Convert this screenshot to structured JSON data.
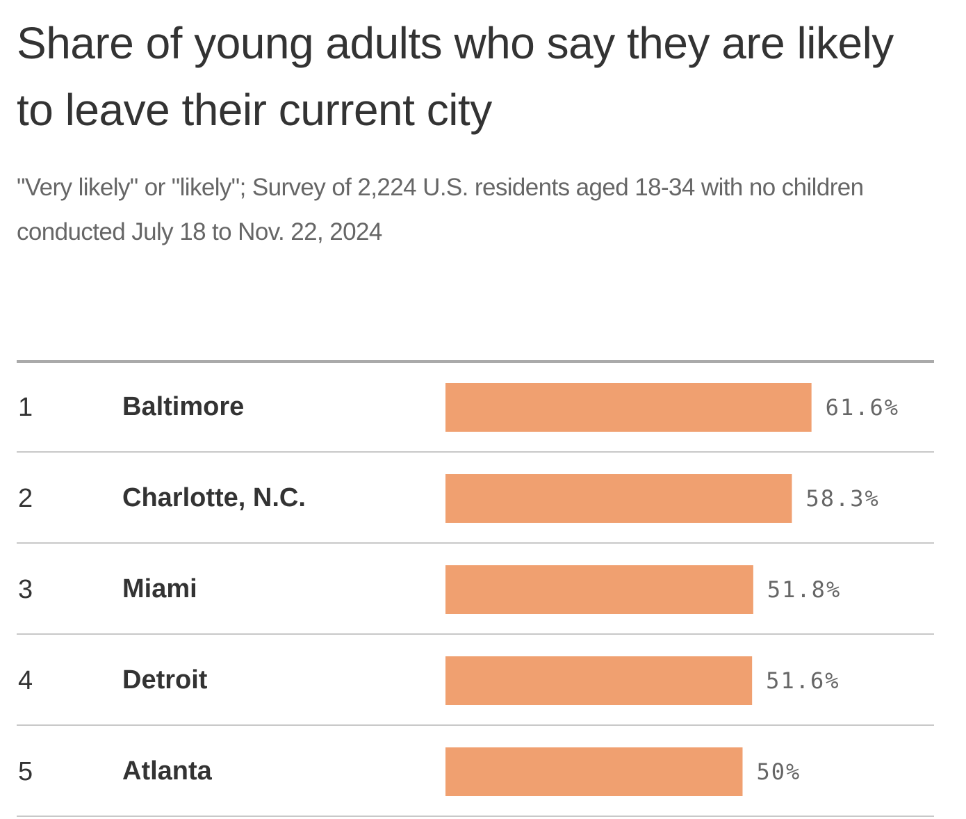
{
  "chart_data": {
    "type": "bar",
    "orientation": "horizontal",
    "title": "Share of young adults who say they are likely to leave their current city",
    "subtitle": "\"Very likely\" or \"likely\"; Survey of 2,224 U.S. residents aged 18-34 with no children conducted July 18 to Nov. 22, 2024",
    "ranks": [
      "1",
      "2",
      "3",
      "4",
      "5"
    ],
    "categories": [
      "Baltimore",
      "Charlotte, N.C.",
      "Miami",
      "Detroit",
      "Atlanta"
    ],
    "values": [
      61.6,
      58.3,
      51.8,
      51.6,
      50
    ],
    "value_labels": [
      "61.6%",
      "58.3%",
      "51.8%",
      "51.6%",
      "50%"
    ],
    "xlim": [
      0,
      100
    ],
    "bar_color": "#f0a070",
    "rule_color": "#c8c8c8",
    "grid": false,
    "legend": "none"
  }
}
